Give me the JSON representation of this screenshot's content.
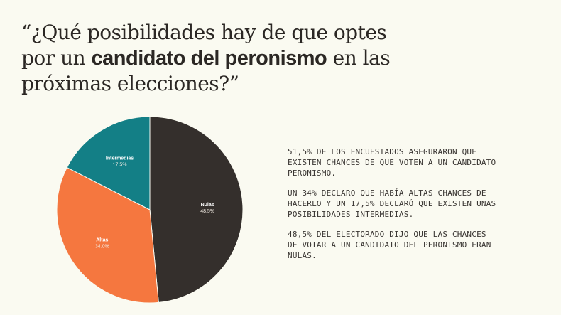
{
  "title": {
    "open_quote_prefix": "“¿Qué posibilidades hay de que optes por un ",
    "bold": "candidato del peronismo",
    "suffix": " en las próximas elecciones?”"
  },
  "notes": [
    "51,5% DE LOS ENCUESTADOS ASEGURARON QUE EXISTEN CHANCES DE QUE VOTEN A UN CANDIDATO PERONISMO.",
    "UN 34% DECLARO QUE HABÍA ALTAS CHANCES DE HACERLO Y UN 17,5% DECLARÓ QUE EXISTEN UNAS POSIBILIDADES INTERMEDIAS.",
    "48,5% DEL ELECTORADO DIJO QUE LAS CHANCES DE VOTAR A UN CANDIDATO DEL PERONISMO ERAN NULAS."
  ],
  "chart_data": {
    "type": "pie",
    "start": "top, clockwise",
    "slices": [
      {
        "label": "Nulas",
        "value": 48.5,
        "value_label": "48.5%",
        "color": "#342f2c"
      },
      {
        "label": "Altas",
        "value": 34.0,
        "value_label": "34.0%",
        "color": "#f5773f"
      },
      {
        "label": "Intermedias",
        "value": 17.5,
        "value_label": "17.5%",
        "color": "#137f86"
      }
    ]
  }
}
